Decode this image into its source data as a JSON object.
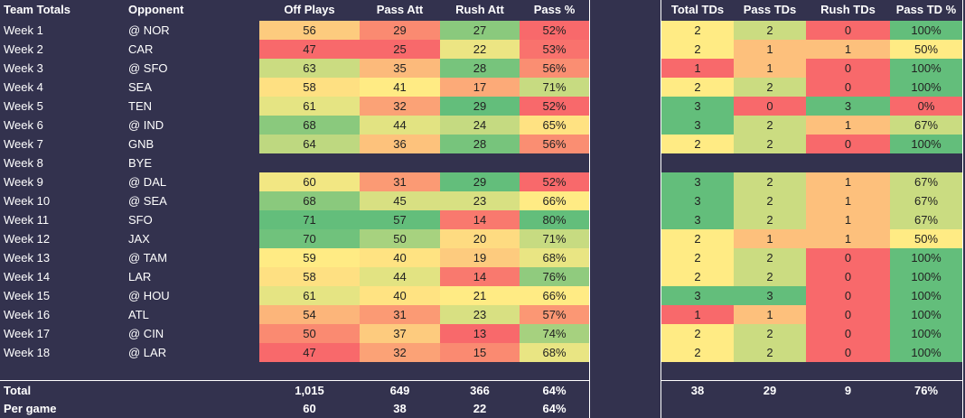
{
  "left": {
    "headers": [
      "Team Totals",
      "Opponent",
      "Off Plays",
      "Pass Att",
      "Rush Att",
      "Pass %"
    ],
    "rows": [
      [
        "Week 1",
        "@ NOR",
        56,
        29,
        27,
        "52%"
      ],
      [
        "Week 2",
        "CAR",
        47,
        25,
        22,
        "53%"
      ],
      [
        "Week 3",
        "@ SFO",
        63,
        35,
        28,
        "56%"
      ],
      [
        "Week 4",
        "SEA",
        58,
        41,
        17,
        "71%"
      ],
      [
        "Week 5",
        "TEN",
        61,
        32,
        29,
        "52%"
      ],
      [
        "Week 6",
        "@ IND",
        68,
        44,
        24,
        "65%"
      ],
      [
        "Week 7",
        "GNB",
        64,
        36,
        28,
        "56%"
      ],
      [
        "Week 8",
        "BYE"
      ],
      [
        "Week 9",
        "@ DAL",
        60,
        31,
        29,
        "52%"
      ],
      [
        "Week 10",
        "@ SEA",
        68,
        45,
        23,
        "66%"
      ],
      [
        "Week 11",
        "SFO",
        71,
        57,
        14,
        "80%"
      ],
      [
        "Week 12",
        "JAX",
        70,
        50,
        20,
        "71%"
      ],
      [
        "Week 13",
        "@ TAM",
        59,
        40,
        19,
        "68%"
      ],
      [
        "Week 14",
        "LAR",
        58,
        44,
        14,
        "76%"
      ],
      [
        "Week 15",
        "@ HOU",
        61,
        40,
        21,
        "66%"
      ],
      [
        "Week 16",
        "ATL",
        54,
        31,
        23,
        "57%"
      ],
      [
        "Week 17",
        "@ CIN",
        50,
        37,
        13,
        "74%"
      ],
      [
        "Week 18",
        "@ LAR",
        47,
        32,
        15,
        "68%"
      ]
    ],
    "total": {
      "label": "Total",
      "values": [
        "1,015",
        649,
        366,
        "64%"
      ]
    },
    "per_game": {
      "label": "Per game",
      "values": [
        60,
        38,
        22,
        "64%"
      ]
    }
  },
  "right": {
    "headers": [
      "Total TDs",
      "Pass TDs",
      "Rush TDs",
      "Pass TD %"
    ],
    "rows": [
      [
        2,
        2,
        0,
        "100%"
      ],
      [
        2,
        1,
        1,
        "50%"
      ],
      [
        1,
        1,
        0,
        "100%"
      ],
      [
        2,
        2,
        0,
        "100%"
      ],
      [
        3,
        0,
        3,
        "0%"
      ],
      [
        3,
        2,
        1,
        "67%"
      ],
      [
        2,
        2,
        0,
        "100%"
      ],
      null,
      [
        3,
        2,
        1,
        "67%"
      ],
      [
        3,
        2,
        1,
        "67%"
      ],
      [
        3,
        2,
        1,
        "67%"
      ],
      [
        2,
        1,
        1,
        "50%"
      ],
      [
        2,
        2,
        0,
        "100%"
      ],
      [
        2,
        2,
        0,
        "100%"
      ],
      [
        3,
        3,
        0,
        "100%"
      ],
      [
        1,
        1,
        0,
        "100%"
      ],
      [
        2,
        2,
        0,
        "100%"
      ],
      [
        2,
        2,
        0,
        "100%"
      ]
    ],
    "total": [
      38,
      29,
      9,
      "76%"
    ]
  }
}
